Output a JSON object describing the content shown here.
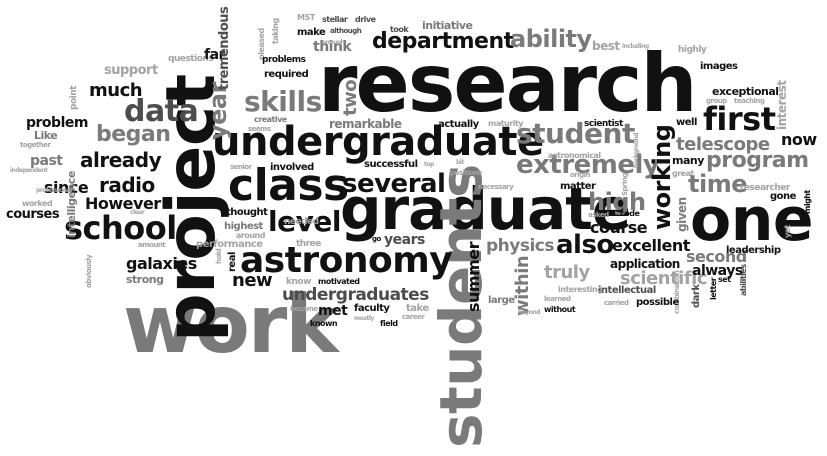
{
  "words": {
    "research": "research",
    "work": "work",
    "project": "project",
    "graduate": "graduate",
    "students": "students",
    "one": "one",
    "undergraduate": "undergraduate",
    "class": "class",
    "astronomy": "astronomy",
    "school": "school",
    "department": "department",
    "ability": "ability",
    "first": "first",
    "data": "data",
    "skills": "skills",
    "student": "student",
    "extremely": "extremely",
    "several": "several",
    "level": "level",
    "already": "already",
    "began": "began",
    "year": "year",
    "much": "much",
    "radio": "radio",
    "However": "However",
    "program": "program",
    "telescope": "telescope",
    "time": "time",
    "working": "working",
    "high": "high",
    "also": "also",
    "course": "course",
    "excellent": "excellent",
    "undergraduates": "undergraduates",
    "physics": "physics",
    "galaxies": "galaxies",
    "new": "new",
    "within": "within",
    "summer": "summer",
    "years": "years",
    "truly": "truly",
    "scientific": "scientific",
    "application": "application",
    "second": "second",
    "always": "always",
    "since": "since",
    "courses": "courses",
    "problem": "problem",
    "past": "past",
    "Like": "Like",
    "worked": "worked",
    "intelligence": "intelligence",
    "point": "point",
    "support": "support",
    "questions": "questions",
    "far": "far",
    "tremendous": "tremendous",
    "pleased": "pleased",
    "taking": "taking",
    "make": "make",
    "MST": "MST",
    "stellar": "stellar",
    "drive": "drive",
    "although": "although",
    "took": "took",
    "initiative": "initiative",
    "best": "best",
    "including": "including",
    "highly": "highly",
    "images": "images",
    "exceptional": "exceptional",
    "group": "group",
    "teaching": "teaching",
    "interest": "interest",
    "well": "well",
    "now": "now",
    "many": "many",
    "great": "great",
    "given": "given",
    "researcher": "researcher",
    "gone": "gone",
    "might": "might",
    "yet": "yet",
    "leadership": "leadership",
    "set": "set",
    "letter": "letter",
    "abilities": "abilities",
    "dark": "dark",
    "combination": "combination",
    "possible": "possible",
    "carried": "carried",
    "intellectual": "intellectual",
    "interesting": "interesting",
    "without": "without",
    "learned": "learned",
    "beyond": "beyond",
    "large": "large",
    "matter": "matter",
    "asked": "asked",
    "code": "code",
    "Spring": "Spring",
    "background": "background",
    "scientist": "scientist",
    "origin": "origin",
    "actually": "actually",
    "maturity": "maturity",
    "necessary": "necessary",
    "bit": "bit",
    "positions": "positions",
    "top": "top",
    "astronomical": "astronomical",
    "successful": "successful",
    "involved": "involved",
    "remarkable": "remarkable",
    "two": "two",
    "think": "think",
    "problems": "problems",
    "required": "required",
    "enough": "enough",
    "creative": "creative",
    "seems": "seems",
    "senior": "senior",
    "thought": "thought",
    "highest": "highest",
    "needed": "needed",
    "around": "around",
    "performance": "performance",
    "three": "three",
    "real": "real",
    "hold": "hold",
    "go": "go",
    "know": "know",
    "became": "became",
    "motivated": "motivated",
    "met": "met",
    "known": "known",
    "faculty": "faculty",
    "mostly": "mostly",
    "field": "field",
    "career": "career",
    "take": "take",
    "strong": "strong",
    "amount": "amount",
    "obviously": "obviously",
    "clear": "clear",
    "independent": "independent",
    "together": "together",
    "professional": "professional"
  }
}
